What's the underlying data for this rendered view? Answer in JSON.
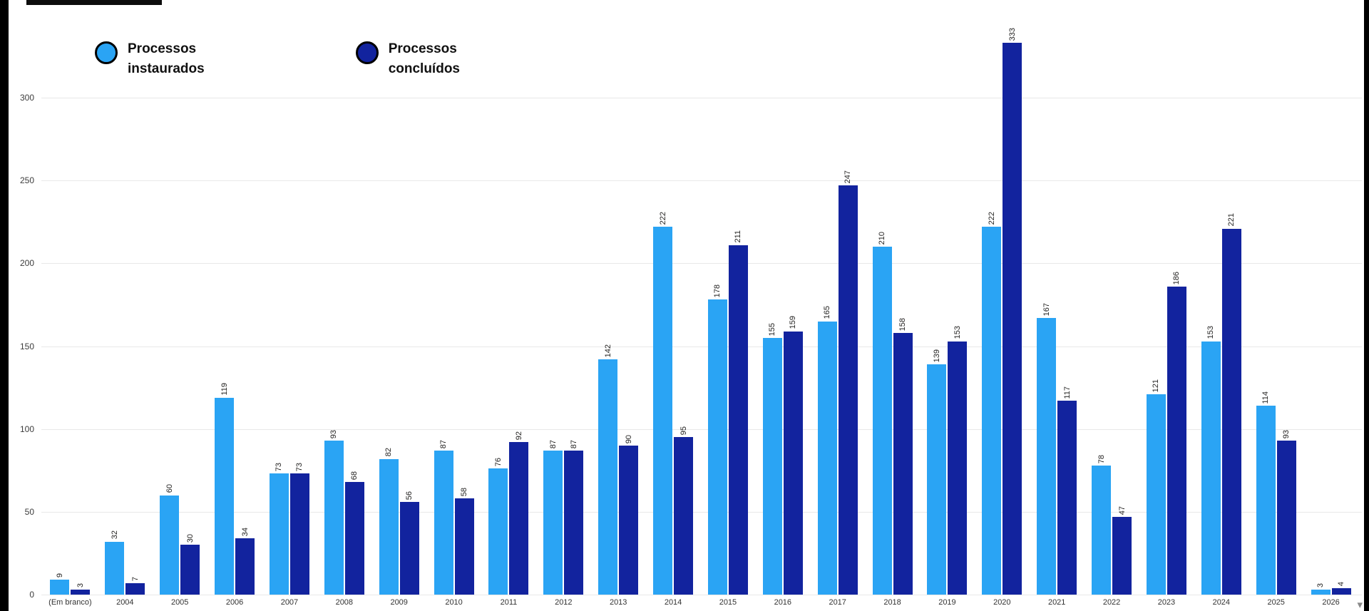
{
  "chart_data": {
    "type": "bar",
    "title": "",
    "categories": [
      "(Em branco)",
      "2004",
      "2005",
      "2006",
      "2007",
      "2008",
      "2009",
      "2010",
      "2011",
      "2012",
      "2013",
      "2014",
      "2015",
      "2016",
      "2017",
      "2018",
      "2019",
      "2020",
      "2021",
      "2022",
      "2023",
      "2024",
      "2025",
      "2026"
    ],
    "series": [
      {
        "name": "Processos\ninstaurados",
        "color": "#2AA4F4",
        "values": [
          9,
          32,
          60,
          119,
          73,
          93,
          82,
          87,
          76,
          87,
          142,
          222,
          178,
          155,
          165,
          210,
          139,
          222,
          167,
          78,
          121,
          153,
          114,
          3
        ]
      },
      {
        "name": "Processos\nconcluídos",
        "color": "#12239E",
        "values": [
          3,
          7,
          30,
          34,
          73,
          68,
          56,
          58,
          92,
          87,
          90,
          95,
          211,
          159,
          247,
          158,
          153,
          333,
          117,
          47,
          186,
          221,
          93,
          4
        ]
      }
    ],
    "ylim": [
      0,
      343
    ],
    "yticks": [
      0,
      50,
      100,
      150,
      200,
      250,
      300
    ],
    "grid": true,
    "legend_position": "top-left",
    "value_labels": "rotated-90",
    "xlabel": "",
    "ylabel": ""
  },
  "page": {
    "scroll_indicator_icon": "▾"
  }
}
